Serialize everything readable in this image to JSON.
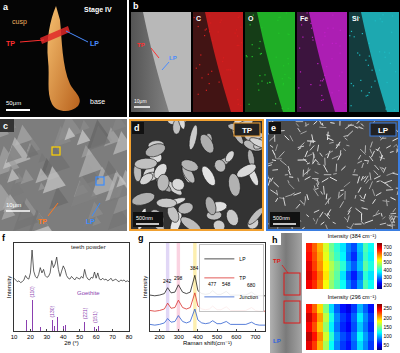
{
  "images": {
    "a": {
      "letter": "a",
      "title": "Stage IV",
      "labels": [
        "cusp",
        "TP",
        "LP",
        "base"
      ],
      "scale_bar": "50μm"
    },
    "b": {
      "letter": "b",
      "labels": [
        "TP",
        "LP"
      ],
      "scale_bar": "10μm",
      "maps": [
        {
          "label": "C",
          "color": "#d81e1e"
        },
        {
          "label": "O",
          "color": "#22c42a"
        },
        {
          "label": "Fe",
          "color": "#c020c8"
        },
        {
          "label": "Si",
          "color": "#1fbcc4"
        }
      ]
    },
    "c": {
      "letter": "c",
      "labels": [
        "TP",
        "LP"
      ],
      "scale_bar": "10μm"
    },
    "d": {
      "letter": "d",
      "label": "TP",
      "scale_bar": "500nm",
      "color": "#f0a030"
    },
    "e": {
      "letter": "e",
      "label": "LP",
      "scale_bar": "500nm",
      "color": "#3a7de0"
    },
    "h": {
      "letter": "h",
      "labels": [
        "TP",
        "LP"
      ]
    }
  },
  "chart_data": [
    {
      "letter": "f",
      "type": "line",
      "x_label": "2θ (°)",
      "y_label": "Intensity",
      "xlim": [
        10,
        80
      ],
      "xticks": [
        10,
        20,
        30,
        40,
        50,
        60,
        70,
        80
      ],
      "ylim": [
        0,
        100
      ],
      "tick_labels": "x",
      "grid": false,
      "series": [
        {
          "name": "teeth powder",
          "color": "#222222",
          "type": "line",
          "x": [
            10,
            11,
            12,
            13,
            14,
            15,
            16,
            17,
            18,
            19,
            20,
            21,
            22,
            23,
            24,
            25,
            26,
            27,
            28,
            29,
            30,
            31,
            32,
            33,
            34,
            35,
            36,
            37,
            38,
            39,
            40,
            41,
            42,
            43,
            44,
            45,
            46,
            47,
            48,
            49,
            50,
            51,
            52,
            53,
            54,
            55,
            56,
            57,
            58,
            59,
            60,
            61,
            62,
            63,
            64,
            65,
            66,
            67,
            68,
            69,
            70,
            71,
            72,
            73,
            74,
            75,
            76,
            77,
            78,
            79,
            80
          ],
          "values": [
            60,
            58,
            56,
            57,
            55,
            56,
            58,
            63,
            60,
            59,
            66,
            92,
            68,
            62,
            60,
            64,
            72,
            66,
            70,
            63,
            61,
            62,
            66,
            80,
            72,
            76,
            84,
            70,
            62,
            68,
            74,
            70,
            63,
            60,
            59,
            62,
            60,
            58,
            61,
            60,
            59,
            62,
            60,
            70,
            62,
            59,
            58,
            61,
            60,
            67,
            60,
            66,
            59,
            58,
            60,
            58,
            59,
            57,
            58,
            60,
            57,
            58,
            59,
            57,
            56,
            58,
            57,
            58,
            56,
            57,
            56
          ]
        },
        {
          "name": "Goethite",
          "color": "#8b3fb0",
          "type": "bar",
          "x": [
            17.8,
            21.2,
            26.3,
            33.2,
            34.7,
            36.6,
            39.98,
            41.2,
            53.2,
            59.0,
            61.3
          ],
          "values": [
            12,
            35,
            4,
            12,
            6,
            16,
            6,
            7,
            10,
            5,
            6
          ]
        }
      ],
      "annotations": [
        {
          "x": 21.2,
          "y": 35,
          "text": "(110)"
        },
        {
          "x": 33.2,
          "y": 12,
          "text": "(130)"
        },
        {
          "x": 53.2,
          "y": 10,
          "text": "(221)"
        },
        {
          "x": 59.0,
          "y": 5,
          "text": "(151)"
        }
      ]
    },
    {
      "letter": "g",
      "type": "line",
      "x_label": "Raman shift(cm⁻¹)",
      "y_label": "Intensity",
      "xlim": [
        150,
        750
      ],
      "xticks": [
        200,
        300,
        400,
        500,
        600,
        700
      ],
      "ylim": [
        0,
        120
      ],
      "tick_labels": "x",
      "grid": false,
      "legend": "top-right",
      "peak_labels": [
        242,
        298,
        384,
        477,
        548,
        680
      ],
      "series": [
        {
          "name": "LP",
          "color": "#222222",
          "x": [
            150,
            175,
            200,
            225,
            242,
            260,
            280,
            298,
            320,
            340,
            360,
            384,
            400,
            420,
            440,
            460,
            477,
            500,
            520,
            548,
            570,
            600,
            630,
            650,
            680,
            700,
            720,
            750
          ],
          "values": [
            49,
            48,
            49,
            51,
            59,
            52,
            53,
            63,
            53,
            51,
            53,
            76,
            55,
            51,
            50,
            51,
            55,
            50,
            50,
            54,
            49,
            49,
            49,
            49,
            53,
            49,
            48,
            48
          ]
        },
        {
          "name": "TP",
          "color": "#d9302c",
          "x": [
            150,
            175,
            200,
            225,
            242,
            260,
            280,
            298,
            320,
            340,
            360,
            384,
            400,
            420,
            440,
            460,
            477,
            500,
            520,
            548,
            570,
            600,
            630,
            650,
            680,
            700,
            720,
            750
          ],
          "values": [
            28,
            27,
            28,
            30,
            38,
            31,
            32,
            42,
            32,
            30,
            32,
            52,
            34,
            30,
            29,
            30,
            34,
            29,
            29,
            33,
            28,
            28,
            28,
            28,
            32,
            28,
            27,
            27
          ]
        },
        {
          "name": "Junction",
          "color": "#2f5fd0",
          "x": [
            150,
            175,
            200,
            225,
            242,
            260,
            280,
            298,
            320,
            340,
            360,
            384,
            400,
            420,
            440,
            460,
            477,
            500,
            520,
            548,
            570,
            600,
            630,
            650,
            680,
            700,
            720,
            750
          ],
          "values": [
            9,
            8,
            9,
            11,
            17,
            12,
            13,
            21,
            13,
            11,
            13,
            30,
            15,
            11,
            10,
            11,
            14,
            10,
            10,
            13,
            9,
            9,
            9,
            9,
            12,
            9,
            8,
            8
          ]
        }
      ]
    },
    {
      "type": "heatmap",
      "title": "Intensity (384 cm⁻¹)",
      "tick_labels": false,
      "colorbar_range": [
        150,
        750
      ],
      "colorbar_ticks": [
        200,
        300,
        400,
        500,
        600,
        700
      ],
      "cells": [
        [
          680,
          650,
          600,
          520,
          460,
          420,
          380,
          300,
          260,
          320,
          420,
          380
        ],
        [
          700,
          660,
          610,
          540,
          470,
          430,
          360,
          280,
          240,
          300,
          400,
          360
        ],
        [
          690,
          640,
          590,
          530,
          480,
          440,
          400,
          320,
          280,
          340,
          430,
          390
        ],
        [
          670,
          630,
          580,
          510,
          450,
          410,
          370,
          290,
          250,
          330,
          410,
          370
        ],
        [
          660,
          620,
          570,
          500,
          440,
          400,
          360,
          300,
          270,
          340,
          420,
          380
        ]
      ]
    },
    {
      "type": "heatmap",
      "title": "Intensity (296 cm⁻¹)",
      "tick_labels": false,
      "colorbar_range": [
        25,
        275
      ],
      "colorbar_ticks": [
        50,
        100,
        150,
        200,
        250
      ],
      "cells": [
        [
          250,
          230,
          200,
          160,
          120,
          90,
          70,
          60,
          80,
          110,
          90,
          70
        ],
        [
          260,
          240,
          210,
          170,
          130,
          95,
          75,
          65,
          85,
          120,
          95,
          75
        ],
        [
          245,
          225,
          195,
          155,
          115,
          85,
          65,
          55,
          75,
          105,
          85,
          65
        ],
        [
          255,
          235,
          205,
          165,
          125,
          90,
          70,
          60,
          80,
          115,
          90,
          70
        ],
        [
          240,
          220,
          190,
          150,
          110,
          80,
          60,
          50,
          70,
          100,
          80,
          60
        ]
      ]
    }
  ]
}
